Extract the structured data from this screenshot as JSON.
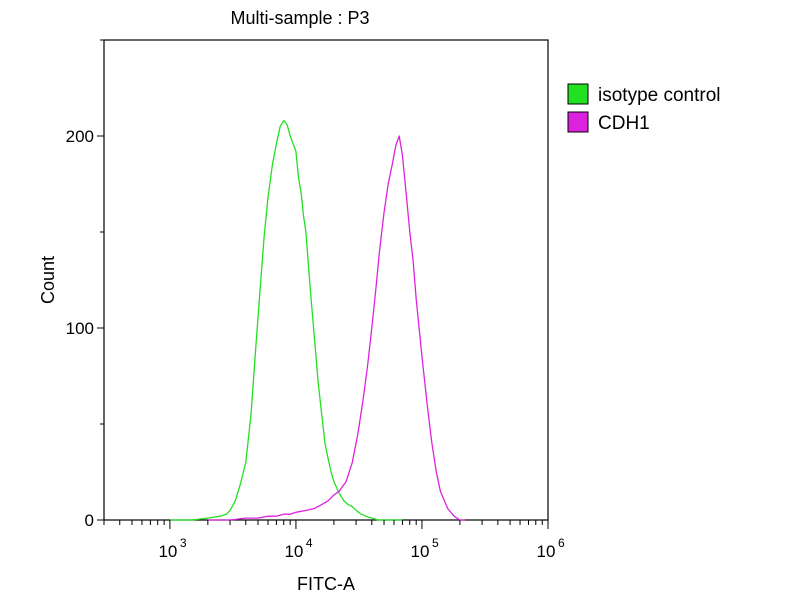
{
  "chart_data": {
    "type": "line",
    "title": "Multi-sample : P3",
    "xlabel": "FITC-A",
    "ylabel": "Count",
    "xscale": "log10",
    "xlim": [
      300,
      1000000
    ],
    "ylim": [
      0,
      250
    ],
    "xticks": [
      {
        "base": "10",
        "exp": "3",
        "value": 1000
      },
      {
        "base": "10",
        "exp": "4",
        "value": 10000
      },
      {
        "base": "10",
        "exp": "5",
        "value": 100000
      },
      {
        "base": "10",
        "exp": "6",
        "value": 1000000
      }
    ],
    "yticks": [
      {
        "label": "0",
        "value": 0
      },
      {
        "label": "100",
        "value": 100
      },
      {
        "label": "200",
        "value": 200
      }
    ],
    "legend_position": "right-outside-top",
    "series": [
      {
        "name": "isotype control",
        "color": "#22e022",
        "x": [
          1000,
          1500,
          2000,
          2500,
          2800,
          3000,
          3300,
          3600,
          4000,
          4400,
          4800,
          5200,
          5600,
          6000,
          6500,
          7000,
          7500,
          8000,
          8500,
          9000,
          9500,
          10000,
          10500,
          11000,
          11500,
          12000,
          13000,
          14000,
          15000,
          16000,
          17000,
          18000,
          19000,
          20000,
          22000,
          24000,
          26000,
          28000,
          30000,
          33000,
          36000,
          40000,
          45000,
          50000,
          60000,
          70000
        ],
        "y": [
          0,
          0,
          1,
          2,
          3,
          5,
          10,
          18,
          30,
          55,
          90,
          120,
          148,
          168,
          185,
          196,
          205,
          208,
          206,
          200,
          196,
          192,
          178,
          170,
          158,
          150,
          120,
          95,
          72,
          55,
          40,
          32,
          25,
          20,
          14,
          10,
          8,
          7,
          5,
          3,
          2,
          1,
          0,
          0,
          0,
          0
        ]
      },
      {
        "name": "CDH1",
        "color": "#dd22dd",
        "x": [
          2000,
          3000,
          4000,
          5000,
          6000,
          7000,
          8000,
          9000,
          10000,
          12000,
          14000,
          16000,
          18000,
          20000,
          22000,
          25000,
          28000,
          31000,
          34000,
          37000,
          40000,
          43000,
          46000,
          50000,
          54000,
          58000,
          62000,
          66000,
          70000,
          75000,
          80000,
          85000,
          90000,
          100000,
          110000,
          120000,
          130000,
          140000,
          160000,
          180000,
          200000,
          220000
        ],
        "y": [
          0,
          0,
          1,
          1,
          2,
          2,
          3,
          3,
          4,
          5,
          6,
          8,
          10,
          13,
          15,
          20,
          30,
          45,
          62,
          80,
          100,
          120,
          140,
          160,
          175,
          185,
          195,
          200,
          190,
          170,
          150,
          135,
          115,
          85,
          60,
          40,
          25,
          15,
          6,
          2,
          0,
          0
        ]
      }
    ]
  }
}
